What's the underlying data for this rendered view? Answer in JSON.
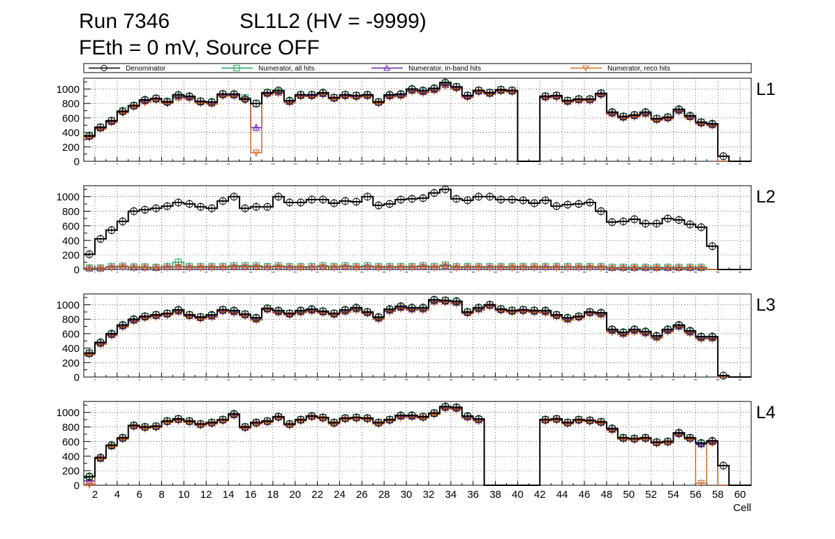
{
  "header": {
    "run": "Run 7346",
    "chamber": "SL1L2 (HV = -9999)",
    "conditions": "FEth = 0 mV, Source OFF"
  },
  "legend": {
    "items": [
      {
        "label": "Denominator",
        "marker": "circle",
        "color": "#000000"
      },
      {
        "label": "Numerator, all hits",
        "marker": "square",
        "color": "#1aa35a"
      },
      {
        "label": "Numerator, in-band hits",
        "marker": "triangle-up",
        "color": "#6a1fb5"
      },
      {
        "label": "Numerator, reco hits",
        "marker": "triangle-down",
        "color": "#d2691e"
      }
    ]
  },
  "chart_data": {
    "type": "step",
    "xlabel": "Cell",
    "xlim": [
      1,
      61
    ],
    "ylim": [
      0,
      1150
    ],
    "yticks": [
      0,
      200,
      400,
      600,
      800,
      1000
    ],
    "xticks": [
      2,
      4,
      6,
      8,
      10,
      12,
      14,
      16,
      18,
      20,
      22,
      24,
      26,
      28,
      30,
      32,
      34,
      36,
      38,
      40,
      42,
      44,
      46,
      48,
      50,
      52,
      54,
      56,
      58,
      60
    ],
    "grid": true,
    "legend_position": "top",
    "panels": [
      {
        "label": "L1",
        "denominator": [
          350,
          470,
          560,
          690,
          770,
          850,
          870,
          820,
          920,
          900,
          830,
          820,
          930,
          930,
          860,
          800,
          950,
          980,
          840,
          920,
          920,
          950,
          880,
          920,
          910,
          920,
          820,
          920,
          930,
          1000,
          980,
          1010,
          1090,
          1030,
          910,
          980,
          950,
          990,
          980,
          0,
          0,
          900,
          910,
          840,
          860,
          860,
          940,
          680,
          620,
          640,
          680,
          590,
          610,
          720,
          630,
          540,
          520,
          70,
          0,
          0
        ],
        "num_all": [
          360,
          470,
          560,
          700,
          770,
          840,
          870,
          830,
          900,
          890,
          830,
          810,
          930,
          920,
          880,
          800,
          950,
          960,
          830,
          920,
          920,
          940,
          880,
          920,
          910,
          920,
          820,
          910,
          920,
          990,
          970,
          1000,
          1070,
          1030,
          910,
          980,
          950,
          990,
          980,
          0,
          0,
          900,
          910,
          840,
          860,
          860,
          940,
          670,
          620,
          640,
          670,
          590,
          610,
          710,
          620,
          540,
          510,
          0,
          0,
          0
        ],
        "num_inband": [
          345,
          455,
          545,
          685,
          760,
          830,
          855,
          815,
          885,
          880,
          815,
          800,
          915,
          910,
          865,
          465,
          935,
          950,
          820,
          905,
          905,
          930,
          870,
          905,
          895,
          905,
          810,
          900,
          910,
          975,
          955,
          985,
          1055,
          1015,
          895,
          965,
          935,
          975,
          965,
          0,
          0,
          885,
          895,
          825,
          845,
          845,
          925,
          660,
          605,
          625,
          655,
          575,
          595,
          695,
          610,
          525,
          500,
          0,
          0,
          0
        ],
        "num_reco": [
          330,
          445,
          535,
          670,
          750,
          815,
          845,
          800,
          875,
          865,
          805,
          790,
          900,
          900,
          850,
          120,
          920,
          940,
          810,
          895,
          890,
          920,
          860,
          890,
          880,
          895,
          800,
          885,
          895,
          965,
          945,
          975,
          1045,
          1000,
          880,
          955,
          925,
          965,
          955,
          0,
          0,
          875,
          880,
          815,
          835,
          835,
          910,
          650,
          595,
          615,
          645,
          565,
          585,
          685,
          600,
          515,
          490,
          0,
          0,
          0
        ]
      },
      {
        "label": "L2",
        "denominator": [
          210,
          420,
          540,
          660,
          800,
          820,
          840,
          870,
          920,
          900,
          860,
          840,
          940,
          1000,
          840,
          860,
          860,
          1000,
          920,
          920,
          960,
          960,
          910,
          940,
          930,
          1000,
          880,
          900,
          960,
          970,
          980,
          1050,
          1100,
          970,
          950,
          1000,
          1000,
          960,
          960,
          950,
          910,
          950,
          870,
          890,
          900,
          920,
          800,
          650,
          660,
          690,
          630,
          630,
          700,
          680,
          620,
          580,
          320,
          0,
          0,
          0
        ],
        "num_all": [
          20,
          20,
          40,
          45,
          35,
          35,
          30,
          40,
          100,
          40,
          40,
          40,
          40,
          50,
          50,
          50,
          40,
          50,
          40,
          40,
          40,
          50,
          40,
          50,
          40,
          50,
          40,
          40,
          40,
          40,
          50,
          40,
          60,
          40,
          40,
          40,
          40,
          40,
          40,
          40,
          40,
          40,
          40,
          40,
          40,
          40,
          40,
          30,
          30,
          30,
          30,
          30,
          30,
          30,
          30,
          30,
          0,
          0,
          0,
          0
        ],
        "num_inband": [
          15,
          15,
          32,
          38,
          28,
          28,
          25,
          32,
          40,
          32,
          32,
          32,
          32,
          40,
          40,
          40,
          32,
          40,
          32,
          32,
          32,
          40,
          32,
          40,
          32,
          40,
          32,
          32,
          32,
          32,
          40,
          32,
          50,
          32,
          32,
          32,
          32,
          32,
          32,
          32,
          32,
          32,
          32,
          32,
          32,
          32,
          32,
          22,
          22,
          22,
          22,
          22,
          22,
          22,
          22,
          22,
          0,
          0,
          0,
          0
        ],
        "num_reco": [
          12,
          12,
          28,
          34,
          25,
          25,
          22,
          28,
          35,
          28,
          28,
          28,
          28,
          35,
          35,
          35,
          28,
          35,
          28,
          28,
          28,
          35,
          28,
          35,
          28,
          35,
          28,
          28,
          28,
          28,
          35,
          28,
          45,
          28,
          28,
          28,
          28,
          28,
          28,
          28,
          28,
          28,
          28,
          28,
          28,
          28,
          28,
          18,
          18,
          18,
          18,
          18,
          18,
          18,
          18,
          18,
          0,
          0,
          0,
          0
        ]
      },
      {
        "label": "L3",
        "denominator": [
          330,
          480,
          600,
          720,
          800,
          840,
          860,
          880,
          930,
          860,
          830,
          860,
          930,
          920,
          870,
          820,
          950,
          920,
          880,
          920,
          940,
          910,
          880,
          930,
          960,
          900,
          830,
          940,
          980,
          960,
          960,
          1070,
          1060,
          1050,
          900,
          960,
          1000,
          940,
          920,
          930,
          920,
          920,
          860,
          820,
          840,
          900,
          890,
          660,
          620,
          660,
          630,
          570,
          660,
          720,
          640,
          560,
          560,
          20,
          0,
          0
        ],
        "num_all": [
          330,
          470,
          590,
          710,
          790,
          840,
          860,
          880,
          920,
          860,
          830,
          850,
          930,
          910,
          870,
          810,
          950,
          910,
          880,
          910,
          930,
          910,
          880,
          920,
          950,
          900,
          820,
          930,
          970,
          950,
          950,
          1060,
          1060,
          1040,
          900,
          950,
          1000,
          940,
          920,
          930,
          920,
          910,
          860,
          810,
          840,
          900,
          880,
          650,
          610,
          650,
          620,
          560,
          650,
          710,
          630,
          550,
          550,
          0,
          0,
          0
        ],
        "num_inband": [
          320,
          460,
          580,
          700,
          780,
          825,
          845,
          865,
          905,
          845,
          815,
          835,
          915,
          895,
          855,
          795,
          935,
          895,
          865,
          895,
          915,
          895,
          865,
          905,
          935,
          885,
          805,
          915,
          955,
          935,
          935,
          1045,
          1045,
          1025,
          885,
          935,
          985,
          925,
          905,
          915,
          905,
          895,
          845,
          795,
          825,
          885,
          865,
          635,
          595,
          635,
          605,
          545,
          635,
          695,
          615,
          535,
          535,
          0,
          0,
          0
        ],
        "num_reco": [
          310,
          450,
          570,
          690,
          770,
          815,
          835,
          855,
          895,
          835,
          805,
          825,
          905,
          885,
          845,
          785,
          925,
          885,
          855,
          885,
          905,
          885,
          855,
          895,
          925,
          875,
          795,
          905,
          945,
          925,
          925,
          1035,
          1035,
          1015,
          875,
          925,
          975,
          915,
          895,
          905,
          895,
          885,
          835,
          785,
          815,
          875,
          855,
          625,
          585,
          625,
          595,
          535,
          625,
          685,
          605,
          525,
          525,
          0,
          0,
          0
        ]
      },
      {
        "label": "L4",
        "denominator": [
          120,
          380,
          550,
          650,
          820,
          800,
          810,
          880,
          910,
          880,
          840,
          860,
          900,
          980,
          800,
          860,
          880,
          940,
          840,
          900,
          950,
          930,
          860,
          920,
          930,
          920,
          860,
          900,
          960,
          960,
          940,
          990,
          1080,
          1070,
          950,
          910,
          0,
          0,
          0,
          0,
          0,
          900,
          910,
          860,
          900,
          890,
          870,
          780,
          650,
          640,
          650,
          590,
          600,
          720,
          650,
          580,
          610,
          270,
          0,
          0
        ],
        "num_all": [
          110,
          370,
          540,
          650,
          820,
          800,
          810,
          880,
          910,
          880,
          840,
          860,
          900,
          970,
          800,
          860,
          880,
          940,
          840,
          900,
          950,
          930,
          860,
          920,
          930,
          920,
          860,
          900,
          950,
          950,
          940,
          990,
          1070,
          1060,
          940,
          900,
          0,
          0,
          0,
          0,
          0,
          900,
          910,
          860,
          900,
          890,
          870,
          770,
          650,
          640,
          650,
          590,
          600,
          710,
          650,
          570,
          600,
          0,
          0,
          0
        ],
        "num_inband": [
          60,
          365,
          535,
          640,
          810,
          790,
          800,
          870,
          895,
          870,
          830,
          850,
          890,
          960,
          790,
          850,
          870,
          930,
          830,
          890,
          940,
          920,
          850,
          910,
          920,
          910,
          850,
          890,
          940,
          940,
          930,
          980,
          1060,
          1050,
          930,
          890,
          0,
          0,
          0,
          0,
          0,
          890,
          900,
          850,
          890,
          880,
          860,
          760,
          640,
          630,
          640,
          580,
          590,
          700,
          640,
          560,
          590,
          0,
          0,
          0
        ],
        "num_reco": [
          10,
          360,
          530,
          630,
          800,
          780,
          790,
          860,
          885,
          860,
          820,
          840,
          880,
          950,
          780,
          840,
          860,
          920,
          820,
          880,
          930,
          910,
          840,
          900,
          910,
          900,
          840,
          880,
          930,
          930,
          920,
          970,
          1050,
          1040,
          920,
          880,
          0,
          0,
          0,
          0,
          0,
          880,
          890,
          840,
          880,
          870,
          850,
          750,
          630,
          620,
          630,
          570,
          580,
          690,
          630,
          30,
          580,
          0,
          0,
          0
        ]
      }
    ]
  }
}
